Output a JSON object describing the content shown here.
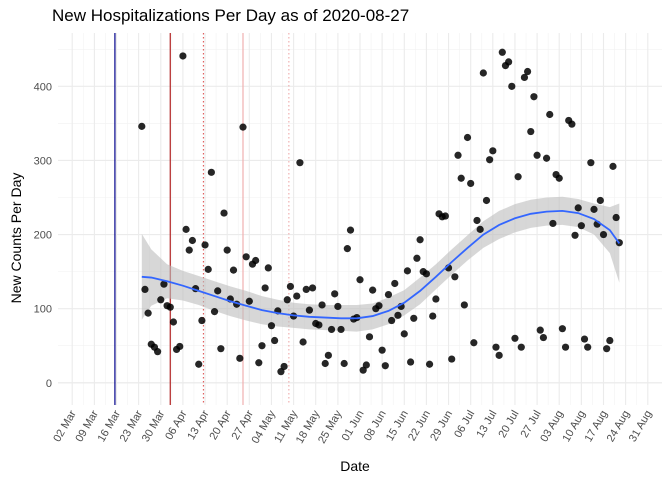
{
  "chart_data": {
    "type": "scatter",
    "title": "New Hospitalizations Per Day as of 2020-08-27",
    "xlabel": "Date",
    "ylabel": "New Counts Per Day",
    "x_range_days": [
      -4.5,
      186.5
    ],
    "ylim": [
      -30,
      472
    ],
    "grid": true,
    "y_ticks": [
      0,
      100,
      200,
      300,
      400
    ],
    "x_ticks": [
      {
        "label": "02 Mar",
        "day": 0
      },
      {
        "label": "09 Mar",
        "day": 7
      },
      {
        "label": "16 Mar",
        "day": 14
      },
      {
        "label": "23 Mar",
        "day": 21
      },
      {
        "label": "30 Mar",
        "day": 28
      },
      {
        "label": "06 Apr",
        "day": 35
      },
      {
        "label": "13 Apr",
        "day": 42
      },
      {
        "label": "20 Apr",
        "day": 49
      },
      {
        "label": "27 Apr",
        "day": 56
      },
      {
        "label": "04 May",
        "day": 63
      },
      {
        "label": "11 May",
        "day": 70
      },
      {
        "label": "18 May",
        "day": 77
      },
      {
        "label": "25 May",
        "day": 84
      },
      {
        "label": "01 Jun",
        "day": 91
      },
      {
        "label": "08 Jun",
        "day": 98
      },
      {
        "label": "15 Jun",
        "day": 105
      },
      {
        "label": "22 Jun",
        "day": 112
      },
      {
        "label": "29 Jun",
        "day": 119
      },
      {
        "label": "06 Jul",
        "day": 126
      },
      {
        "label": "13 Jul",
        "day": 133
      },
      {
        "label": "20 Jul",
        "day": 140
      },
      {
        "label": "27 Jul",
        "day": 147
      },
      {
        "label": "03 Aug",
        "day": 154
      },
      {
        "label": "10 Aug",
        "day": 161
      },
      {
        "label": "17 Aug",
        "day": 168
      },
      {
        "label": "24 Aug",
        "day": 175
      },
      {
        "label": "31 Aug",
        "day": 182
      }
    ],
    "vertical_lines": [
      {
        "day": 13.5,
        "color": "#00008b",
        "style": "solid"
      },
      {
        "day": 31,
        "color": "#b22222",
        "style": "solid"
      },
      {
        "day": 41.5,
        "color": "#e06060",
        "style": "dotted"
      },
      {
        "day": 54,
        "color": "#f0b0b0",
        "style": "solid"
      },
      {
        "day": 68.5,
        "color": "#f0b0b0",
        "style": "dotted"
      }
    ],
    "series": [
      {
        "name": "daily counts",
        "color": "#000000",
        "points": [
          [
            22,
            346
          ],
          [
            23,
            126
          ],
          [
            24,
            94
          ],
          [
            25,
            52
          ],
          [
            26,
            48
          ],
          [
            27,
            42
          ],
          [
            28,
            112
          ],
          [
            29,
            133
          ],
          [
            30,
            104
          ],
          [
            31,
            102
          ],
          [
            32,
            82
          ],
          [
            33,
            45
          ],
          [
            34,
            49
          ],
          [
            35,
            441
          ],
          [
            36,
            207
          ],
          [
            37,
            179
          ],
          [
            38,
            192
          ],
          [
            39,
            127
          ],
          [
            40,
            25
          ],
          [
            41,
            84
          ],
          [
            42,
            186
          ],
          [
            43,
            153
          ],
          [
            44,
            284
          ],
          [
            45,
            96
          ],
          [
            46,
            124
          ],
          [
            47,
            46
          ],
          [
            48,
            229
          ],
          [
            49,
            179
          ],
          [
            50,
            113
          ],
          [
            51,
            152
          ],
          [
            52,
            106
          ],
          [
            53,
            33
          ],
          [
            54,
            345
          ],
          [
            55,
            170
          ],
          [
            56,
            110
          ],
          [
            57,
            160
          ],
          [
            58,
            165
          ],
          [
            59,
            27
          ],
          [
            60,
            50
          ],
          [
            61,
            128
          ],
          [
            62,
            155
          ],
          [
            63,
            77
          ],
          [
            64,
            57
          ],
          [
            65,
            97
          ],
          [
            66,
            15
          ],
          [
            67,
            22
          ],
          [
            68,
            112
          ],
          [
            69,
            130
          ],
          [
            70,
            90
          ],
          [
            71,
            117
          ],
          [
            72,
            297
          ],
          [
            73,
            55
          ],
          [
            74,
            126
          ],
          [
            75,
            98
          ],
          [
            76,
            128
          ],
          [
            77,
            80
          ],
          [
            78,
            78
          ],
          [
            79,
            105
          ],
          [
            80,
            26
          ],
          [
            81,
            37
          ],
          [
            82,
            72
          ],
          [
            83,
            120
          ],
          [
            84,
            103
          ],
          [
            85,
            72
          ],
          [
            86,
            26
          ],
          [
            87,
            181
          ],
          [
            88,
            206
          ],
          [
            89,
            86
          ],
          [
            90,
            88
          ],
          [
            91,
            139
          ],
          [
            92,
            17
          ],
          [
            93,
            24
          ],
          [
            94,
            62
          ],
          [
            95,
            125
          ],
          [
            96,
            100
          ],
          [
            97,
            104
          ],
          [
            98,
            44
          ],
          [
            99,
            23
          ],
          [
            100,
            119
          ],
          [
            101,
            84
          ],
          [
            102,
            134
          ],
          [
            103,
            91
          ],
          [
            104,
            103
          ],
          [
            105,
            66
          ],
          [
            106,
            151
          ],
          [
            107,
            28
          ],
          [
            108,
            87
          ],
          [
            109,
            168
          ],
          [
            110,
            193
          ],
          [
            111,
            150
          ],
          [
            112,
            147
          ],
          [
            113,
            25
          ],
          [
            114,
            90
          ],
          [
            115,
            113
          ],
          [
            116,
            228
          ],
          [
            117,
            224
          ],
          [
            118,
            225
          ],
          [
            119,
            155
          ],
          [
            120,
            32
          ],
          [
            121,
            143
          ],
          [
            122,
            307
          ],
          [
            123,
            276
          ],
          [
            124,
            105
          ],
          [
            125,
            331
          ],
          [
            126,
            269
          ],
          [
            127,
            54
          ],
          [
            128,
            219
          ],
          [
            129,
            207
          ],
          [
            130,
            418
          ],
          [
            131,
            246
          ],
          [
            132,
            301
          ],
          [
            133,
            313
          ],
          [
            134,
            48
          ],
          [
            135,
            37
          ],
          [
            136,
            446
          ],
          [
            137,
            428
          ],
          [
            138,
            433
          ],
          [
            139,
            400
          ],
          [
            140,
            60
          ],
          [
            141,
            278
          ],
          [
            142,
            48
          ],
          [
            143,
            412
          ],
          [
            144,
            420
          ],
          [
            145,
            339
          ],
          [
            146,
            386
          ],
          [
            147,
            307
          ],
          [
            148,
            71
          ],
          [
            149,
            61
          ],
          [
            150,
            303
          ],
          [
            151,
            362
          ],
          [
            152,
            215
          ],
          [
            153,
            281
          ],
          [
            154,
            276
          ],
          [
            155,
            73
          ],
          [
            156,
            48
          ],
          [
            157,
            354
          ],
          [
            158,
            349
          ],
          [
            159,
            199
          ],
          [
            160,
            236
          ],
          [
            161,
            212
          ],
          [
            162,
            59
          ],
          [
            163,
            48
          ],
          [
            164,
            297
          ],
          [
            165,
            234
          ],
          [
            166,
            214
          ],
          [
            167,
            246
          ],
          [
            168,
            200
          ],
          [
            169,
            46
          ],
          [
            170,
            57
          ],
          [
            171,
            292
          ],
          [
            172,
            223
          ],
          [
            173,
            189
          ]
        ]
      }
    ],
    "smooth": {
      "color": "#3366ff",
      "band_color": "#bdbdbd",
      "points": [
        [
          22,
          143,
          201,
          85
        ],
        [
          25,
          142,
          180,
          104
        ],
        [
          30,
          137,
          160,
          114
        ],
        [
          35,
          131,
          151,
          111
        ],
        [
          40,
          124,
          144,
          105
        ],
        [
          45,
          117,
          137,
          97
        ],
        [
          50,
          110,
          130,
          90
        ],
        [
          55,
          104,
          124,
          84
        ],
        [
          60,
          98,
          117,
          79
        ],
        [
          65,
          94,
          112,
          76
        ],
        [
          70,
          91,
          108,
          74
        ],
        [
          75,
          89,
          106,
          72
        ],
        [
          80,
          88,
          105,
          71
        ],
        [
          85,
          87,
          105,
          70
        ],
        [
          90,
          87,
          105,
          69
        ],
        [
          95,
          90,
          107,
          72
        ],
        [
          100,
          97,
          115,
          79
        ],
        [
          105,
          108,
          125,
          91
        ],
        [
          110,
          124,
          142,
          106
        ],
        [
          115,
          143,
          160,
          126
        ],
        [
          120,
          163,
          180,
          146
        ],
        [
          125,
          182,
          199,
          165
        ],
        [
          130,
          200,
          218,
          182
        ],
        [
          135,
          213,
          232,
          194
        ],
        [
          140,
          222,
          241,
          203
        ],
        [
          145,
          228,
          247,
          209
        ],
        [
          150,
          231,
          250,
          212
        ],
        [
          155,
          232,
          251,
          213
        ],
        [
          160,
          229,
          248,
          210
        ],
        [
          165,
          221,
          242,
          200
        ],
        [
          170,
          206,
          237,
          175
        ],
        [
          173,
          188,
          242,
          135
        ]
      ]
    }
  }
}
